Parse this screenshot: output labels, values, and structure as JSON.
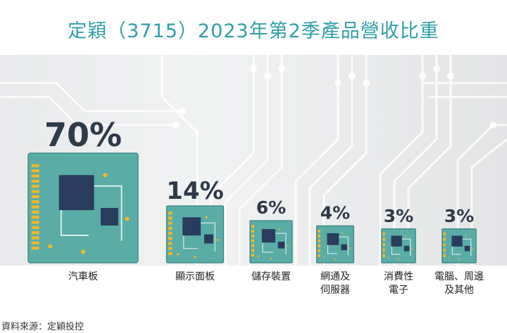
{
  "title": "定穎（3715）2023年第2季產品營收比重",
  "source": "資料來源：定穎投控",
  "colors": {
    "title": "#2f9ea6",
    "board": "#5aaca7",
    "board_edge": "#438c88",
    "chip": "#2a3c5c",
    "gold": "#f0b72a",
    "text": "#2e3a48"
  },
  "chart_data": {
    "type": "bar",
    "title": "定穎（3715）2023年第2季產品營收比重",
    "unit": "%",
    "categories": [
      [
        "汽車板"
      ],
      [
        "顯示面板"
      ],
      [
        "儲存裝置"
      ],
      [
        "網通及",
        "伺服器"
      ],
      [
        "消費性",
        "電子"
      ],
      [
        "電腦、周邊",
        "及其他"
      ]
    ],
    "values": [
      70,
      14,
      6,
      4,
      3,
      3
    ],
    "labels": [
      "70%",
      "14%",
      "6%",
      "4%",
      "3%",
      "3%"
    ]
  }
}
